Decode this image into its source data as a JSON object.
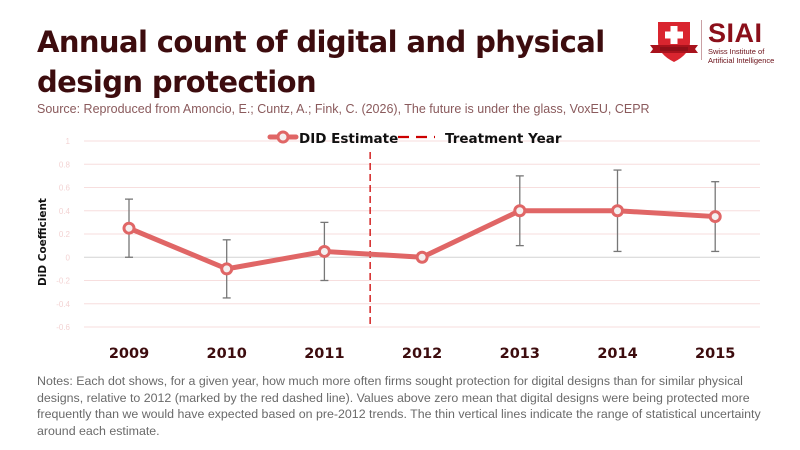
{
  "header": {
    "title": "Annual count of digital and physical design protection",
    "source": "Source: Reproduced from Amoncio, E.; Cuntz, A.; Fink, C. (2026), The future is under the glass, VoxEU, CEPR"
  },
  "logo": {
    "name": "SIAI",
    "subtitle_line1": "Swiss Institute of",
    "subtitle_line2": "Artificial Intelligence",
    "brand_color": "#8b0f1a",
    "shield_color": "#d9252f"
  },
  "notes": "Notes: Each dot shows, for a given year, how much more often firms sought protection for digital designs than for similar physical designs, relative to 2012 (marked by the red dashed line). Values above zero mean that digital designs were being protected more frequently than we would have expected based on pre-2012 trends. The thin vertical lines indicate the range of statistical uncertainty around each estimate.",
  "chart_data": {
    "type": "line",
    "title": "Annual count of digital and physical design protection",
    "xlabel": "",
    "ylabel": "DiD Coefficient",
    "categories": [
      "2009",
      "2010",
      "2011",
      "2012",
      "2013",
      "2014",
      "2015"
    ],
    "series": [
      {
        "name": "DID Estimate",
        "color": "#e06666",
        "values": [
          0.25,
          -0.1,
          0.05,
          0.0,
          0.4,
          0.4,
          0.35
        ],
        "ci_upper": [
          0.5,
          0.15,
          0.3,
          0.0,
          0.7,
          0.75,
          0.65
        ],
        "ci_lower": [
          0.0,
          -0.35,
          -0.2,
          0.0,
          0.1,
          0.05,
          0.05
        ]
      }
    ],
    "reference_lines": [
      {
        "name": "Treatment Year",
        "type": "vertical-dashed",
        "position": "between 2011 and 2012",
        "x_index": 2.55,
        "color": "#cc0000"
      }
    ],
    "ylim": [
      -0.6,
      1
    ],
    "yticks": [
      "1",
      "0.8",
      "0.6",
      "0.4",
      "0.2",
      "0",
      "-0.2",
      "-0.4",
      "-0.6"
    ],
    "ytick_values": [
      1,
      0.8,
      0.6,
      0.4,
      0.2,
      0,
      -0.2,
      -0.4,
      -0.6
    ],
    "grid": true,
    "legend": {
      "placement": "top-center",
      "entries": [
        "DID Estimate",
        "Treatment Year"
      ]
    }
  }
}
